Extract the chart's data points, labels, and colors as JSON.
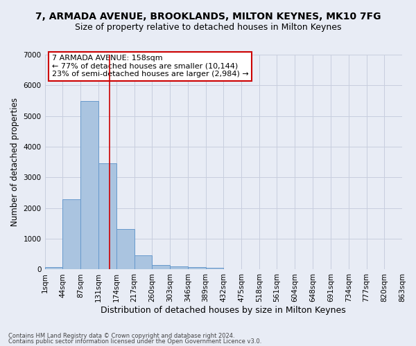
{
  "title1": "7, ARMADA AVENUE, BROOKLANDS, MILTON KEYNES, MK10 7FG",
  "title2": "Size of property relative to detached houses in Milton Keynes",
  "xlabel": "Distribution of detached houses by size in Milton Keynes",
  "ylabel": "Number of detached properties",
  "bin_edges": [
    1,
    44,
    87,
    131,
    174,
    217,
    260,
    303,
    346,
    389,
    432,
    475,
    518,
    561,
    604,
    648,
    691,
    734,
    777,
    820,
    863
  ],
  "bar_heights": [
    80,
    2280,
    5480,
    3460,
    1320,
    470,
    155,
    100,
    80,
    50,
    0,
    0,
    0,
    0,
    0,
    0,
    0,
    0,
    0,
    0
  ],
  "bar_color": "#aac4e0",
  "bar_edge_color": "#6699cc",
  "grid_color": "#c8cede",
  "bg_color": "#e8ecf5",
  "red_line_x": 158,
  "annotation_line1": "7 ARMADA AVENUE: 158sqm",
  "annotation_line2": "← 77% of detached houses are smaller (10,144)",
  "annotation_line3": "23% of semi-detached houses are larger (2,984) →",
  "annotation_box_color": "#ffffff",
  "annotation_text_color": "#000000",
  "red_color": "#cc0000",
  "ylim": [
    0,
    7000
  ],
  "yticks": [
    0,
    1000,
    2000,
    3000,
    4000,
    5000,
    6000,
    7000
  ],
  "footer1": "Contains HM Land Registry data © Crown copyright and database right 2024.",
  "footer2": "Contains public sector information licensed under the Open Government Licence v3.0.",
  "title1_fontsize": 10,
  "title2_fontsize": 9,
  "xlabel_fontsize": 9,
  "ylabel_fontsize": 8.5,
  "tick_fontsize": 7.5,
  "annotation_fontsize": 8,
  "footer_fontsize": 6
}
